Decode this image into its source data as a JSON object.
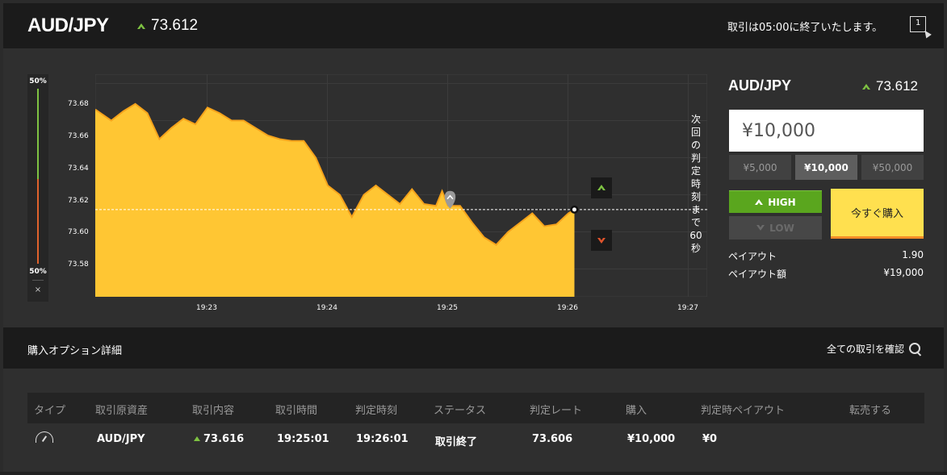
{
  "header": {
    "pair": "AUD/JPY",
    "rate": "73.612",
    "notice": "取引は05:00に終了いたします。",
    "exit_icon": "exit-icon"
  },
  "gauge": {
    "top_pct": "50%",
    "bottom_pct": "50%",
    "close": "×"
  },
  "chart": {
    "countdown": [
      "次",
      "回",
      "の",
      "判",
      "定",
      "時",
      "刻",
      "ま",
      "で",
      "60",
      "秒"
    ]
  },
  "chart_data": {
    "type": "area",
    "series": [
      {
        "x": [
          "19:22:06",
          "19:22:12",
          "19:22:18",
          "19:22:24",
          "19:22:30",
          "19:22:36",
          "19:22:42",
          "19:22:48",
          "19:22:54",
          "19:23:00",
          "19:23:06",
          "19:23:12",
          "19:23:18",
          "19:23:24",
          "19:23:30",
          "19:23:36",
          "19:23:42",
          "19:23:48",
          "19:23:54",
          "19:24:00",
          "19:24:06",
          "19:24:12",
          "19:24:18",
          "19:24:24",
          "19:24:30",
          "19:24:36",
          "19:24:42",
          "19:24:48",
          "19:24:54",
          "19:24:57",
          "19:25:00",
          "19:25:06",
          "19:25:12",
          "19:25:18",
          "19:25:24",
          "19:25:30",
          "19:25:36",
          "19:25:42",
          "19:25:48",
          "19:25:54",
          "19:26:00",
          "19:26:03"
        ],
        "y": [
          73.666,
          73.66,
          73.665,
          73.669,
          73.664,
          73.65,
          73.656,
          73.661,
          73.658,
          73.667,
          73.664,
          73.66,
          73.66,
          73.656,
          73.652,
          73.65,
          73.649,
          73.649,
          73.64,
          73.625,
          73.62,
          73.608,
          73.62,
          73.625,
          73.62,
          73.615,
          73.623,
          73.615,
          73.614,
          73.622,
          73.614,
          73.614,
          73.605,
          73.597,
          73.593,
          73.6,
          73.605,
          73.61,
          73.603,
          73.604,
          73.61,
          73.612
        ]
      }
    ],
    "x_ticks": [
      "19:23",
      "19:24",
      "19:25",
      "19:26",
      "19:27"
    ],
    "y_ticks": [
      "73.68",
      "73.66",
      "73.64",
      "73.62",
      "73.60",
      "73.58"
    ],
    "ylim": [
      73.565,
      73.685
    ],
    "current_rate": 73.612,
    "entry": {
      "time": "19:25:01",
      "rate": 73.616
    },
    "grid": true,
    "colors": {
      "fill": "#ffc633",
      "line": "#f5a21b",
      "grid": "#3c3c3c"
    }
  },
  "panel": {
    "pair": "AUD/JPY",
    "rate": "73.612",
    "amount": "¥10,000",
    "amount_options": [
      "¥5,000",
      "¥10,000",
      "¥50,000"
    ],
    "high_label": "HIGH",
    "low_label": "LOW",
    "buy_label": "今すぐ購入",
    "payout_label": "ペイアウト",
    "payout_value": "1.90",
    "payout_amount_label": "ペイアウト額",
    "payout_amount_value": "¥19,000"
  },
  "section": {
    "title": "購入オプション詳細",
    "all_trades": "全ての取引を確認"
  },
  "table": {
    "headers": [
      "タイプ",
      "取引原資産",
      "取引内容",
      "取引時間",
      "判定時刻",
      "ステータス",
      "判定レート",
      "購入",
      "判定時ペイアウト",
      "転売する"
    ],
    "row": {
      "asset": "AUD/JPY",
      "content": "73.616",
      "trade_time": "19:25:01",
      "judge_time": "19:26:01",
      "status": "取引終了",
      "judge_rate": "73.606",
      "purchase": "¥10,000",
      "payout": "¥0"
    }
  },
  "colors": {
    "accent_up": "#7ec242",
    "accent_down": "#e0542c",
    "buy": "#ffe04f",
    "high": "#5aa61e"
  }
}
